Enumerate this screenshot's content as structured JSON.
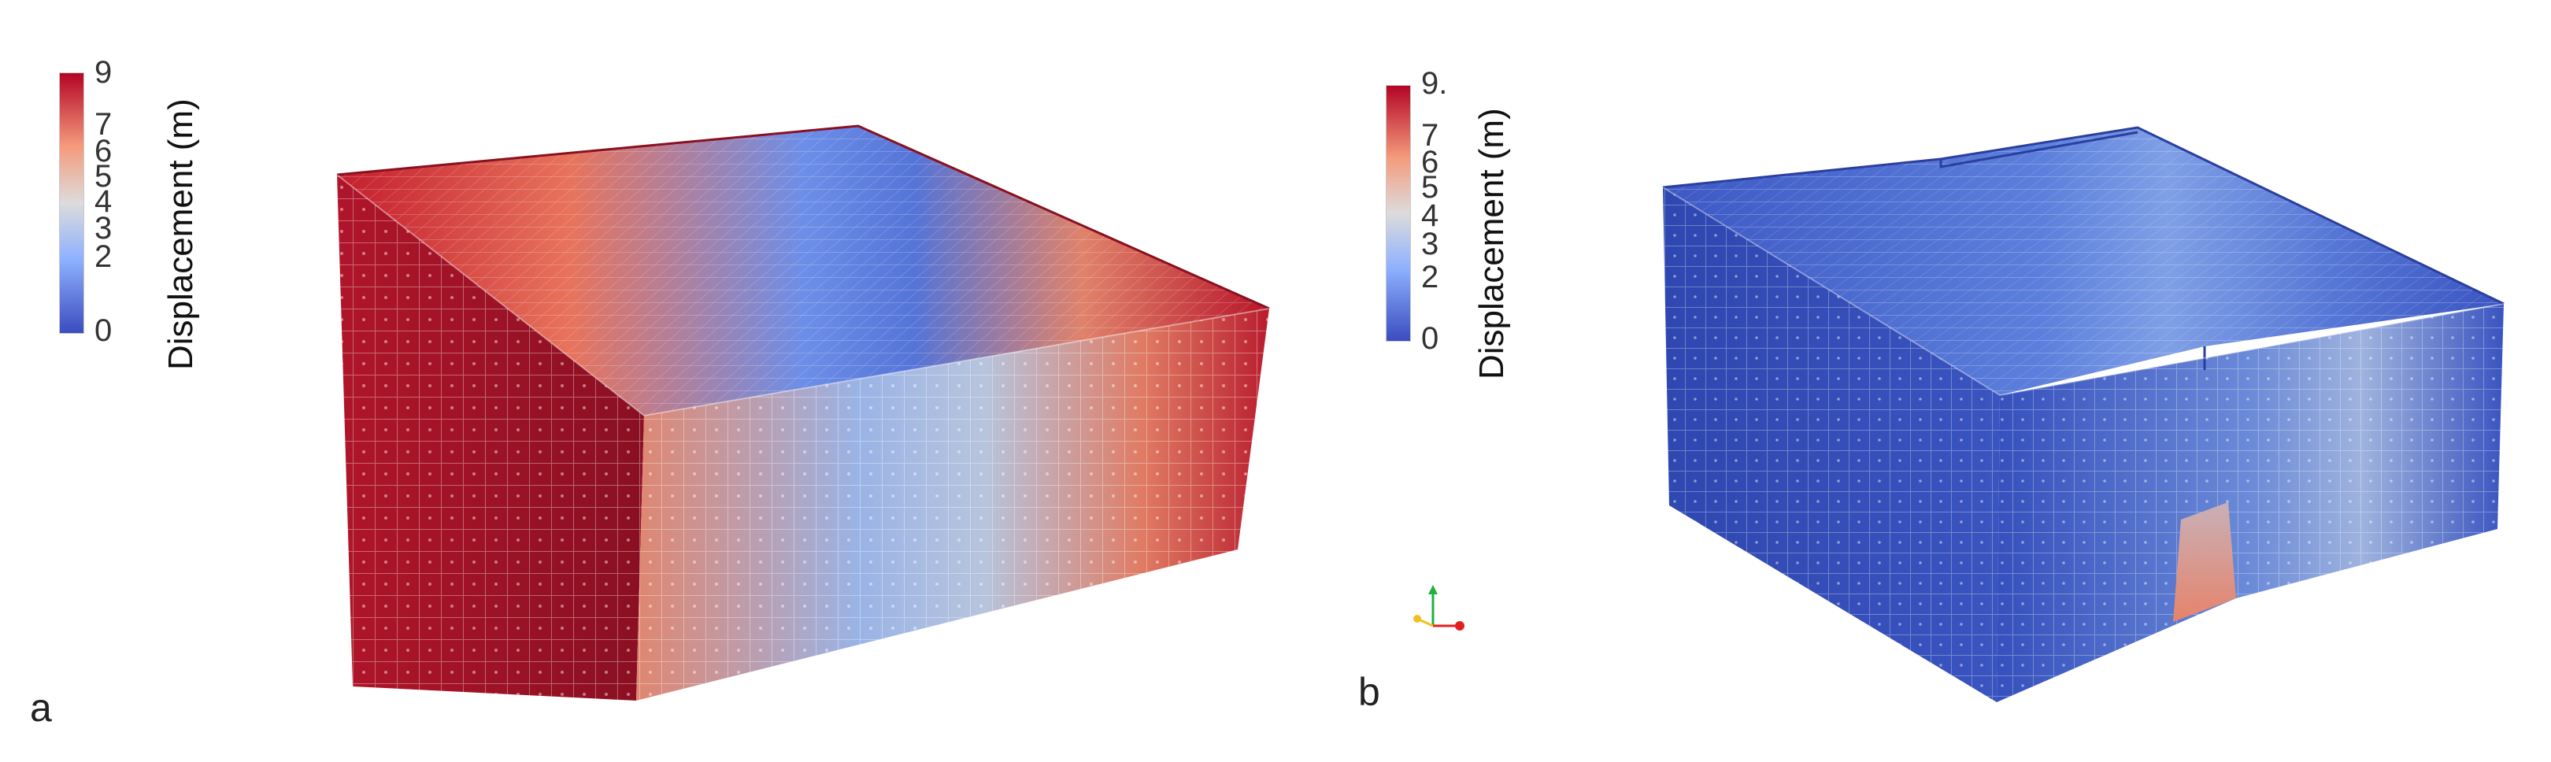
{
  "panel_a": {
    "letter": "a",
    "colorbar": {
      "title": "Displacement (m)",
      "ticks": [
        "9",
        "7",
        "6",
        "5",
        "4",
        "3",
        "2",
        "0"
      ]
    }
  },
  "panel_b": {
    "letter": "b",
    "colorbar": {
      "title": "Displacement (m)",
      "ticks": [
        "9.",
        "7",
        "6",
        "5",
        "4",
        "3",
        "2",
        "0"
      ]
    }
  },
  "colormap": {
    "low": "#3b4cc0",
    "mid": "#dddcdc",
    "high": "#b40426"
  },
  "orientation_axes": {
    "x": "#e02020",
    "y": "#20b040",
    "z": "#f0c020"
  }
}
